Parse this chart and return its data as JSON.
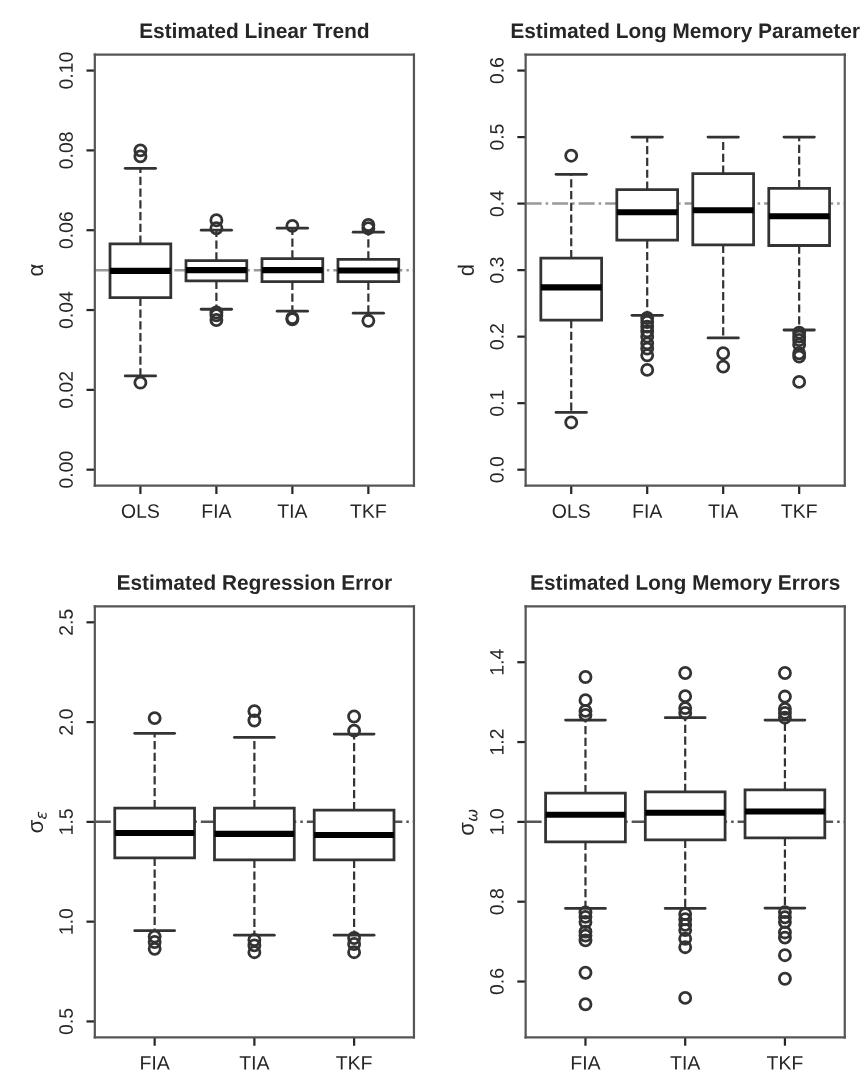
{
  "chart_data": [
    {
      "type": "box",
      "title": "Estimated Linear Trend",
      "ylabel": "α",
      "categories": [
        "OLS",
        "FIA",
        "TIA",
        "TKF"
      ],
      "ylim": [
        -0.004,
        0.104
      ],
      "yticks": [
        {
          "value": 0,
          "label": "0.00"
        },
        {
          "value": 0.02,
          "label": "0.02"
        },
        {
          "value": 0.04,
          "label": "0.04"
        },
        {
          "value": 0.06,
          "label": "0.06"
        },
        {
          "value": 0.08,
          "label": "0.08"
        },
        {
          "value": 0.1,
          "label": "0.10"
        }
      ],
      "grid": false,
      "boxes": [
        {
          "low": 0.0235,
          "q1": 0.0431,
          "median": 0.0498,
          "q3": 0.0566,
          "high": 0.0755,
          "outliers": [
            0.08,
            0.0785,
            0.0218
          ]
        },
        {
          "low": 0.0402,
          "q1": 0.0473,
          "median": 0.05,
          "q3": 0.0524,
          "high": 0.06,
          "outliers": [
            0.0625,
            0.0605,
            0.0394,
            0.0387,
            0.0375
          ]
        },
        {
          "low": 0.0397,
          "q1": 0.0471,
          "median": 0.05,
          "q3": 0.0529,
          "high": 0.0605,
          "outliers": [
            0.0611,
            0.0377,
            0.038
          ]
        },
        {
          "low": 0.0392,
          "q1": 0.0471,
          "median": 0.0499,
          "q3": 0.0527,
          "high": 0.0595,
          "outliers": [
            0.0613,
            0.0605,
            0.0373
          ]
        }
      ],
      "ref_lines": [
        {
          "axis": "y",
          "value": 0.05,
          "color": "#999999",
          "line_style": "dashdot"
        }
      ]
    },
    {
      "type": "box",
      "title": "Estimated Long Memory Parameter",
      "ylabel": "d",
      "categories": [
        "OLS",
        "FIA",
        "TIA",
        "TKF"
      ],
      "ylim": [
        -0.024,
        0.624
      ],
      "yticks": [
        {
          "value": 0,
          "label": "0.0"
        },
        {
          "value": 0.1,
          "label": "0.1"
        },
        {
          "value": 0.2,
          "label": "0.2"
        },
        {
          "value": 0.3,
          "label": "0.3"
        },
        {
          "value": 0.4,
          "label": "0.4"
        },
        {
          "value": 0.5,
          "label": "0.5"
        },
        {
          "value": 0.6,
          "label": "0.6"
        }
      ],
      "grid": false,
      "boxes": [
        {
          "low": 0.086,
          "q1": 0.225,
          "median": 0.274,
          "q3": 0.318,
          "high": 0.444,
          "outliers": [
            0.472,
            0.071
          ]
        },
        {
          "low": 0.232,
          "q1": 0.345,
          "median": 0.387,
          "q3": 0.421,
          "high": 0.5,
          "outliers": [
            0.228,
            0.222,
            0.215,
            0.208,
            0.2,
            0.19,
            0.182,
            0.172,
            0.15
          ]
        },
        {
          "low": 0.198,
          "q1": 0.338,
          "median": 0.39,
          "q3": 0.445,
          "high": 0.5,
          "outliers": [
            0.175,
            0.155
          ]
        },
        {
          "low": 0.21,
          "q1": 0.337,
          "median": 0.381,
          "q3": 0.423,
          "high": 0.5,
          "outliers": [
            0.206,
            0.2,
            0.195,
            0.188,
            0.175,
            0.17,
            0.132
          ]
        }
      ],
      "ref_lines": [
        {
          "axis": "y",
          "value": 0.4,
          "color": "#999999",
          "line_style": "dashdot"
        }
      ]
    },
    {
      "type": "box",
      "title": "Estimated Regression Error",
      "ylabel": "σ$_{ε}$",
      "categories": [
        "FIA",
        "TIA",
        "TKF"
      ],
      "ylim": [
        0.42,
        2.58
      ],
      "yticks": [
        {
          "value": 0.5,
          "label": "0.5"
        },
        {
          "value": 1.0,
          "label": "1.0"
        },
        {
          "value": 1.5,
          "label": "1.5"
        },
        {
          "value": 2.0,
          "label": "2.0"
        },
        {
          "value": 2.5,
          "label": "2.5"
        }
      ],
      "grid": false,
      "boxes": [
        {
          "low": 0.955,
          "q1": 1.32,
          "median": 1.444,
          "q3": 1.569,
          "high": 1.944,
          "outliers": [
            2.02,
            0.925,
            0.898,
            0.864
          ]
        },
        {
          "low": 0.932,
          "q1": 1.31,
          "median": 1.44,
          "q3": 1.569,
          "high": 1.923,
          "outliers": [
            2.055,
            2.008,
            0.908,
            0.881,
            0.847
          ]
        },
        {
          "low": 0.932,
          "q1": 1.31,
          "median": 1.434,
          "q3": 1.559,
          "high": 1.94,
          "outliers": [
            2.028,
            1.957,
            0.918,
            0.888,
            0.847
          ]
        }
      ],
      "ref_lines": [
        {
          "axis": "y",
          "value": 1.5,
          "color": "#555555",
          "line_style": "dashdot"
        }
      ]
    },
    {
      "type": "box",
      "title": "Estimated Long Memory Errors",
      "ylabel": "σ$_{ω}$",
      "categories": [
        "FIA",
        "TIA",
        "TKF"
      ],
      "ylim": [
        0.46,
        1.54
      ],
      "yticks": [
        {
          "value": 0.6,
          "label": "0.6"
        },
        {
          "value": 0.8,
          "label": "0.8"
        },
        {
          "value": 1.0,
          "label": "1.0"
        },
        {
          "value": 1.2,
          "label": "1.2"
        },
        {
          "value": 1.4,
          "label": "1.4"
        }
      ],
      "grid": false,
      "boxes": [
        {
          "low": 0.783,
          "q1": 0.95,
          "median": 1.018,
          "q3": 1.072,
          "high": 1.255,
          "outliers": [
            1.363,
            1.305,
            1.278,
            1.268,
            0.773,
            0.762,
            0.749,
            0.725,
            0.715,
            0.703,
            0.622,
            0.543
          ]
        },
        {
          "low": 0.783,
          "q1": 0.955,
          "median": 1.023,
          "q3": 1.075,
          "high": 1.261,
          "outliers": [
            1.373,
            1.315,
            1.285,
            1.273,
            0.769,
            0.756,
            0.742,
            0.729,
            0.707,
            0.686,
            0.559
          ]
        },
        {
          "low": 0.784,
          "q1": 0.96,
          "median": 1.026,
          "q3": 1.08,
          "high": 1.255,
          "outliers": [
            1.373,
            1.314,
            1.283,
            1.273,
            1.261,
            0.774,
            0.761,
            0.749,
            0.723,
            0.71,
            0.666,
            0.607
          ]
        }
      ],
      "ref_lines": [
        {
          "axis": "y",
          "value": 1.0,
          "color": "#555555",
          "line_style": "dashdot"
        }
      ]
    }
  ]
}
